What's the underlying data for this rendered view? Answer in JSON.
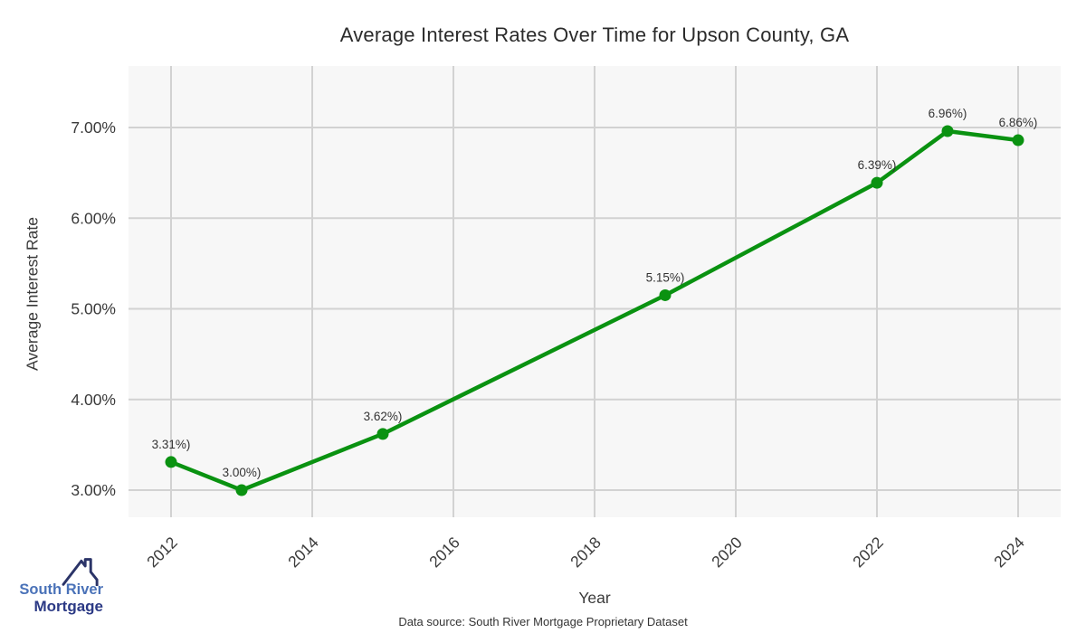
{
  "page": {
    "background": "#ffffff"
  },
  "logo": {
    "line1": "South River",
    "line2": "Mortgage",
    "line1_color": "#4a72b8",
    "line2_color": "#2c3a85",
    "icon_color": "#2b3468"
  },
  "footer": {
    "text": "Data source: South River Mortgage Proprietary Dataset"
  },
  "chart_data": {
    "type": "line",
    "title": "Average Interest Rates Over Time for Upson County, GA",
    "xlabel": "Year",
    "ylabel": "Average Interest Rate",
    "x": [
      2012,
      2013,
      2015,
      2019,
      2022,
      2023,
      2024
    ],
    "values": [
      3.31,
      3.0,
      3.62,
      5.15,
      6.39,
      6.96,
      6.86
    ],
    "point_labels": [
      "3.31%)",
      "3.00%)",
      "3.62%)",
      "5.15%)",
      "6.39%)",
      "6.96%)",
      "6.86%)"
    ],
    "x_ticks": [
      2012,
      2014,
      2016,
      2018,
      2020,
      2022,
      2024
    ],
    "y_ticks": [
      "3.00%",
      "4.00%",
      "5.00%",
      "6.00%",
      "7.00%"
    ],
    "y_tick_values": [
      3,
      4,
      5,
      6,
      7
    ],
    "xlim": [
      2011.4,
      2024.6
    ],
    "ylim": [
      2.7,
      7.68
    ],
    "grid": true,
    "legend": "none",
    "line_color": "#0a9211",
    "marker": "circle",
    "panel_bg": "#f7f7f7",
    "grid_color": "#d2d2d2",
    "tick_color": "#3a3a3a",
    "data_label_color": "#333333"
  }
}
